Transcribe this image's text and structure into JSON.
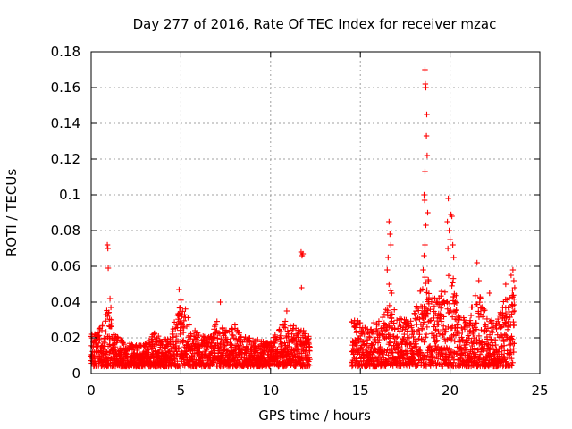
{
  "chart_data": {
    "type": "scatter",
    "title": "Day 277 of 2016, Rate Of TEC Index for receiver mzac",
    "xlabel": "GPS time / hours",
    "ylabel": "ROTI / TECUs",
    "xlim": [
      0,
      25
    ],
    "ylim": [
      0,
      0.18
    ],
    "x_ticks": [
      0,
      5,
      10,
      15,
      20,
      25
    ],
    "y_ticks": [
      0,
      0.02,
      0.04,
      0.06,
      0.08,
      0.1,
      0.12,
      0.14,
      0.16,
      0.18
    ],
    "x_tick_labels": [
      "0",
      "5",
      "10",
      "15",
      "20",
      "25"
    ],
    "y_tick_labels": [
      "0",
      "0.02",
      "0.04",
      "0.06",
      "0.08",
      "0.1",
      "0.12",
      "0.14",
      "0.16",
      "0.18"
    ],
    "grid": true,
    "marker": "+",
    "color": "#ff0000",
    "series": [
      {
        "name": "ROTI",
        "envelope": [
          [
            0.0,
            0.022
          ],
          [
            0.3,
            0.024
          ],
          [
            0.5,
            0.026
          ],
          [
            0.8,
            0.03
          ],
          [
            0.9,
            0.04
          ],
          [
            1.0,
            0.035
          ],
          [
            1.3,
            0.022
          ],
          [
            1.8,
            0.018
          ],
          [
            2.5,
            0.016
          ],
          [
            3.0,
            0.017
          ],
          [
            3.5,
            0.024
          ],
          [
            4.0,
            0.02
          ],
          [
            4.5,
            0.024
          ],
          [
            4.8,
            0.035
          ],
          [
            5.0,
            0.042
          ],
          [
            5.2,
            0.038
          ],
          [
            5.5,
            0.028
          ],
          [
            6.0,
            0.022
          ],
          [
            6.5,
            0.02
          ],
          [
            7.0,
            0.03
          ],
          [
            7.3,
            0.026
          ],
          [
            7.7,
            0.024
          ],
          [
            8.0,
            0.028
          ],
          [
            8.3,
            0.022
          ],
          [
            8.8,
            0.02
          ],
          [
            9.5,
            0.02
          ],
          [
            10.0,
            0.018
          ],
          [
            10.5,
            0.025
          ],
          [
            10.8,
            0.03
          ],
          [
            11.2,
            0.028
          ],
          [
            11.5,
            0.024
          ],
          [
            11.8,
            0.026
          ],
          [
            12.2,
            0.022
          ],
          [
            14.5,
            0.03
          ],
          [
            14.8,
            0.03
          ],
          [
            15.5,
            0.028
          ],
          [
            16.0,
            0.03
          ],
          [
            16.5,
            0.042
          ],
          [
            16.7,
            0.055
          ],
          [
            17.0,
            0.032
          ],
          [
            17.5,
            0.03
          ],
          [
            18.0,
            0.034
          ],
          [
            18.3,
            0.045
          ],
          [
            18.6,
            0.06
          ],
          [
            18.9,
            0.05
          ],
          [
            19.3,
            0.04
          ],
          [
            19.6,
            0.05
          ],
          [
            20.0,
            0.06
          ],
          [
            20.2,
            0.055
          ],
          [
            20.5,
            0.035
          ],
          [
            21.0,
            0.028
          ],
          [
            21.5,
            0.05
          ],
          [
            21.8,
            0.04
          ],
          [
            22.2,
            0.03
          ],
          [
            22.6,
            0.03
          ],
          [
            23.0,
            0.045
          ],
          [
            23.5,
            0.05
          ],
          [
            23.6,
            0.04
          ]
        ],
        "spikes": [
          [
            0.9,
            0.072
          ],
          [
            0.93,
            0.07
          ],
          [
            0.95,
            0.059
          ],
          [
            1.05,
            0.042
          ],
          [
            1.1,
            0.037
          ],
          [
            4.9,
            0.047
          ],
          [
            7.2,
            0.04
          ],
          [
            10.9,
            0.035
          ],
          [
            11.7,
            0.068
          ],
          [
            11.75,
            0.066
          ],
          [
            11.8,
            0.067
          ],
          [
            11.72,
            0.048
          ],
          [
            16.6,
            0.085
          ],
          [
            16.65,
            0.078
          ],
          [
            16.7,
            0.072
          ],
          [
            16.55,
            0.065
          ],
          [
            16.5,
            0.058
          ],
          [
            16.6,
            0.05
          ],
          [
            16.75,
            0.045
          ],
          [
            18.6,
            0.17
          ],
          [
            18.62,
            0.162
          ],
          [
            18.65,
            0.16
          ],
          [
            18.7,
            0.145
          ],
          [
            18.68,
            0.133
          ],
          [
            18.72,
            0.122
          ],
          [
            18.6,
            0.113
          ],
          [
            18.55,
            0.1
          ],
          [
            18.58,
            0.097
          ],
          [
            18.75,
            0.09
          ],
          [
            18.65,
            0.083
          ],
          [
            18.6,
            0.072
          ],
          [
            18.55,
            0.066
          ],
          [
            18.5,
            0.058
          ],
          [
            19.9,
            0.098
          ],
          [
            19.85,
            0.085
          ],
          [
            19.95,
            0.08
          ],
          [
            20.0,
            0.075
          ],
          [
            19.88,
            0.07
          ],
          [
            20.05,
            0.089
          ],
          [
            20.1,
            0.088
          ],
          [
            20.15,
            0.072
          ],
          [
            20.2,
            0.065
          ],
          [
            21.5,
            0.062
          ],
          [
            21.6,
            0.052
          ],
          [
            22.2,
            0.045
          ],
          [
            23.1,
            0.05
          ],
          [
            23.4,
            0.055
          ],
          [
            23.5,
            0.058
          ],
          [
            23.55,
            0.052
          ],
          [
            23.6,
            0.048
          ]
        ]
      }
    ]
  }
}
